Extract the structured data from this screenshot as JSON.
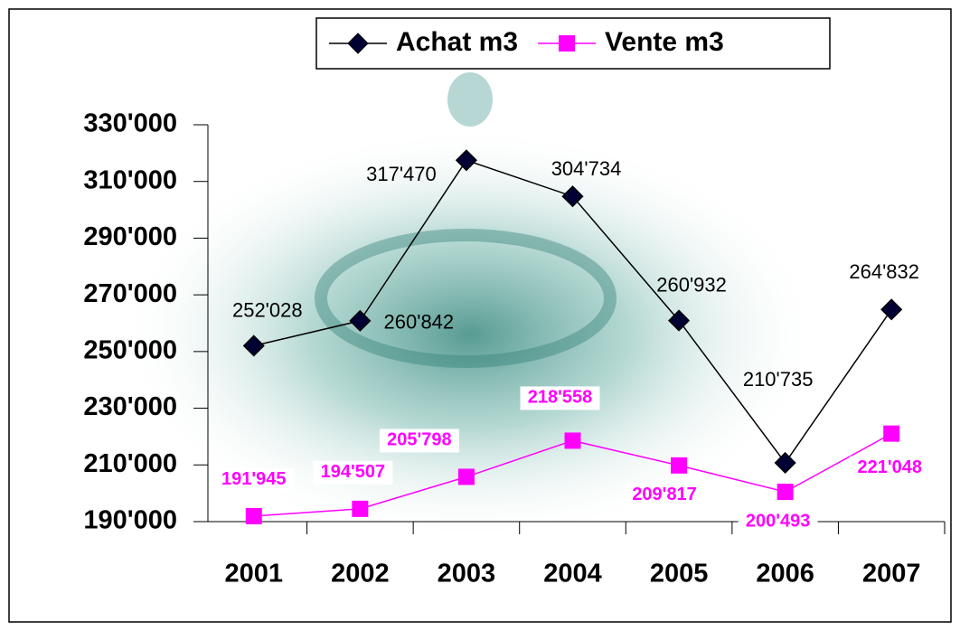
{
  "chart_data": {
    "type": "line",
    "categories": [
      "2001",
      "2002",
      "2003",
      "2004",
      "2005",
      "2006",
      "2007"
    ],
    "series": [
      {
        "name": "Achat m3",
        "color": "#000000",
        "marker_color": "#000033",
        "marker": "diamond",
        "values": [
          252028,
          260842,
          317470,
          304734,
          260932,
          210735,
          264832
        ],
        "value_labels": [
          "252'028",
          "260'842",
          "317'470",
          "304'734",
          "260'932",
          "210'735",
          "264'832"
        ]
      },
      {
        "name": "Vente m3",
        "color": "#ff00ff",
        "marker_color": "#ff00ff",
        "marker": "square",
        "values": [
          191945,
          194507,
          205798,
          218558,
          209817,
          200493,
          221048
        ],
        "value_labels": [
          "191'945",
          "194'507",
          "205'798",
          "218'558",
          "209'817",
          "200'493",
          "221'048"
        ]
      }
    ],
    "ylim": [
      190000,
      330000
    ],
    "yticks": [
      {
        "value": 190000,
        "label": "190'000"
      },
      {
        "value": 210000,
        "label": "210'000"
      },
      {
        "value": 230000,
        "label": "230'000"
      },
      {
        "value": 250000,
        "label": "250'000"
      },
      {
        "value": 270000,
        "label": "270'000"
      },
      {
        "value": 290000,
        "label": "290'000"
      },
      {
        "value": 310000,
        "label": "310'000"
      },
      {
        "value": 330000,
        "label": "330'000"
      }
    ],
    "legend": "top",
    "grid": false
  }
}
